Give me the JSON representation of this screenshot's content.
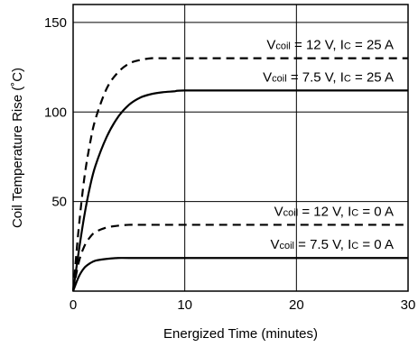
{
  "chart_data": {
    "type": "line",
    "xlabel": "Energized Time (minutes)",
    "ylabel": "Coil Temperature Rise (˚C)",
    "xlim": [
      0,
      30
    ],
    "ylim": [
      0,
      160
    ],
    "x_ticks": [
      "0",
      "10",
      "20",
      "30"
    ],
    "y_ticks": [
      "50",
      "100",
      "150"
    ],
    "grid": true,
    "series": [
      {
        "name": "Vcoil = 12 V, Ic = 25 A",
        "label": {
          "v": "V",
          "v_sub": "coil",
          "mid": " = 12 V, I",
          "i_sub": "C",
          "tail": " = 25 A"
        },
        "style": "dashed",
        "x": [
          0,
          0.5,
          1,
          1.5,
          2,
          3,
          4,
          5,
          6,
          7,
          8,
          10,
          15,
          20,
          30
        ],
        "y": [
          0,
          35,
          63,
          82,
          96,
          113,
          122,
          127,
          129,
          130,
          130,
          130,
          130,
          130,
          130
        ]
      },
      {
        "name": "Vcoil = 7.5 V, Ic = 25 A",
        "label": {
          "v": "V",
          "v_sub": "coil",
          "mid": " = 7.5 V, I",
          "i_sub": "C",
          "tail": " = 25 A"
        },
        "style": "solid",
        "x": [
          0,
          0.5,
          1,
          1.5,
          2,
          3,
          4,
          5,
          6,
          7,
          8,
          9,
          10,
          15,
          20,
          30
        ],
        "y": [
          0,
          22,
          42,
          58,
          70,
          86,
          97,
          104,
          108,
          110,
          111,
          111.5,
          112,
          112,
          112,
          112
        ]
      },
      {
        "name": "Vcoil = 12 V, Ic = 0 A",
        "label": {
          "v": "V",
          "v_sub": "coil",
          "mid": " = 12 V, I",
          "i_sub": "C",
          "tail": " = 0 A"
        },
        "style": "dashed",
        "x": [
          0,
          0.5,
          1,
          1.5,
          2,
          3,
          4,
          5,
          6,
          8,
          10,
          20,
          30
        ],
        "y": [
          0,
          16,
          25,
          30,
          33,
          35.5,
          36.5,
          37,
          37,
          37,
          37,
          37,
          37
        ]
      },
      {
        "name": "Vcoil = 7.5 V, Ic = 0 A",
        "label": {
          "v": "V",
          "v_sub": "coil",
          "mid": " = 7.5 V, I",
          "i_sub": "C",
          "tail": " = 0 A"
        },
        "style": "solid",
        "x": [
          0,
          0.5,
          1,
          1.5,
          2,
          3,
          4,
          5,
          8,
          10,
          20,
          30
        ],
        "y": [
          0,
          8,
          13,
          15.5,
          17,
          18,
          18.5,
          18.5,
          18.5,
          18.5,
          18.5,
          18.5
        ]
      }
    ]
  }
}
